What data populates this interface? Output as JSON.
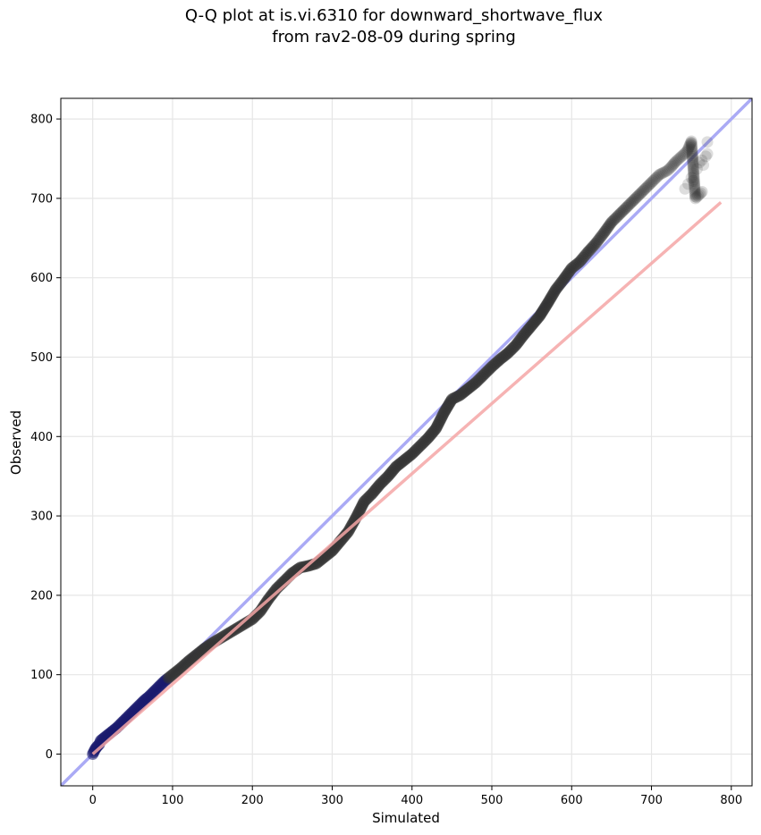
{
  "figure": {
    "title_line1": "Q-Q plot at is.vi.6310 for downward_shortwave_flux",
    "title_line2": "from rav2-08-09 during spring"
  },
  "chart_data": {
    "type": "scatter",
    "xlabel": "Simulated",
    "ylabel": "Observed",
    "xlim": [
      -40,
      826
    ],
    "ylim": [
      -40,
      826
    ],
    "xticks": [
      0,
      100,
      200,
      300,
      400,
      500,
      600,
      700,
      800
    ],
    "yticks": [
      0,
      100,
      200,
      300,
      400,
      500,
      600,
      700,
      800
    ],
    "grid": true,
    "reference_line": {
      "label": "1:1",
      "x": [
        -40,
        826
      ],
      "y": [
        -40,
        826
      ],
      "color": "#aaaaf5"
    },
    "fit_line": {
      "x": [
        0,
        787
      ],
      "y": [
        0,
        695
      ],
      "color": "#f4a6a6"
    },
    "point_color": "#333333",
    "low_point_color": "#1a1a6e",
    "series": [
      {
        "x": [
          0,
          1,
          2,
          3,
          5,
          8,
          10,
          15,
          20,
          25,
          30,
          35,
          40,
          45,
          50,
          55,
          60,
          65,
          70,
          75,
          80,
          85,
          90,
          95,
          100,
          110,
          120,
          130,
          140,
          150,
          160,
          170,
          180,
          190,
          200,
          210,
          220,
          230,
          240,
          250,
          260,
          270,
          280,
          290,
          300,
          310,
          320,
          330,
          340,
          350,
          360,
          370,
          380,
          390,
          400,
          410,
          420,
          430,
          440,
          450,
          460,
          470,
          480,
          490,
          500,
          510,
          520,
          530,
          540,
          550,
          560,
          570,
          580,
          590,
          600,
          610,
          620,
          630,
          640,
          650,
          660,
          670,
          680,
          690,
          700,
          710,
          720,
          725,
          730,
          740,
          745,
          750,
          755,
          760,
          765,
          770,
          775,
          780,
          785,
          787
        ],
        "y": [
          0,
          2,
          4,
          6,
          9,
          12,
          17,
          21,
          25,
          29,
          33,
          38,
          43,
          48,
          53,
          58,
          63,
          68,
          72,
          77,
          82,
          87,
          92,
          96,
          100,
          108,
          117,
          125,
          133,
          140,
          146,
          152,
          158,
          164,
          170,
          180,
          195,
          208,
          218,
          228,
          235,
          237,
          240,
          248,
          256,
          268,
          280,
          298,
          318,
          328,
          340,
          350,
          362,
          370,
          378,
          388,
          398,
          410,
          430,
          447,
          452,
          460,
          468,
          478,
          488,
          497,
          505,
          515,
          528,
          540,
          552,
          568,
          585,
          598,
          612,
          620,
          632,
          643,
          656,
          670,
          680,
          690,
          700,
          710,
          720,
          730,
          735,
          740,
          746,
          755,
          760,
          772,
          700,
          705,
          710,
          715,
          720,
          725,
          730,
          735
        ]
      }
    ]
  }
}
